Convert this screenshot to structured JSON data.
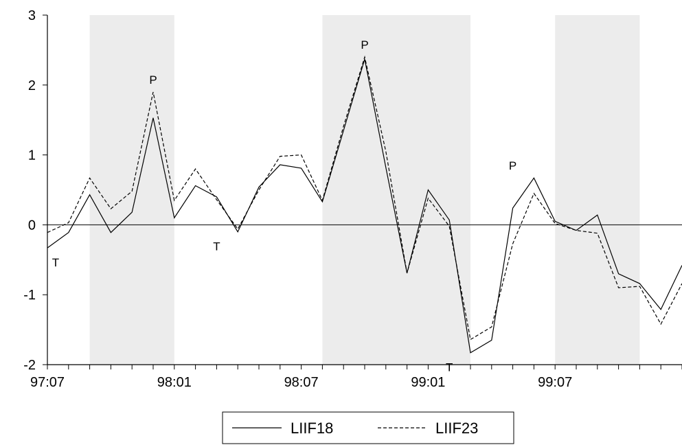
{
  "chart_data": {
    "type": "line",
    "title": "",
    "xlabel": "",
    "ylabel": "",
    "ylim": [
      -2,
      3
    ],
    "y_ticks": [
      3,
      2,
      1,
      0,
      -1,
      -2
    ],
    "y_tick_labels": [
      "3",
      "2",
      "1",
      "0",
      "-1",
      "-2"
    ],
    "x": [
      "97:07",
      "97:08",
      "97:09",
      "97:10",
      "97:11",
      "97:12",
      "98:01",
      "98:02",
      "98:03",
      "98:04",
      "98:05",
      "98:06",
      "98:07",
      "98:08",
      "98:09",
      "98:10",
      "98:11",
      "98:12",
      "99:01",
      "99:02",
      "99:03",
      "99:04",
      "99:05",
      "99:06",
      "99:07",
      "99:08",
      "99:09",
      "99:10",
      "99:11",
      "99:12",
      "00:01"
    ],
    "x_tick_labels": [
      {
        "label": "97:07",
        "month": "97:07"
      },
      {
        "label": "98:01",
        "month": "98:01"
      },
      {
        "label": "98:07",
        "month": "98:07"
      },
      {
        "label": "99:01",
        "month": "99:01"
      },
      {
        "label": "99:07",
        "month": "99:07"
      }
    ],
    "series": [
      {
        "name": "LIIF18",
        "style": "solid",
        "color": "#000000",
        "values": [
          -0.33,
          -0.11,
          0.43,
          -0.11,
          0.18,
          1.53,
          0.1,
          0.56,
          0.4,
          -0.1,
          0.54,
          0.86,
          0.81,
          0.33,
          1.35,
          2.37,
          0.82,
          -0.69,
          0.5,
          0.07,
          -1.83,
          -1.65,
          0.24,
          0.67,
          0.05,
          -0.08,
          0.14,
          -0.7,
          -0.84,
          -1.21,
          -0.58
        ]
      },
      {
        "name": "LIIF23",
        "style": "dashed",
        "color": "#000000",
        "values": [
          -0.11,
          0.03,
          0.67,
          0.23,
          0.48,
          1.9,
          0.35,
          0.8,
          0.36,
          -0.06,
          0.5,
          0.98,
          1.0,
          0.35,
          1.41,
          2.4,
          1.05,
          -0.69,
          0.38,
          -0.02,
          -1.64,
          -1.46,
          -0.27,
          0.45,
          0.02,
          -0.08,
          -0.12,
          -0.9,
          -0.88,
          -1.42,
          -0.84
        ]
      }
    ],
    "shaded_periods": [
      {
        "start": "97:09",
        "end": "98:01"
      },
      {
        "start": "98:08",
        "end": "99:03"
      },
      {
        "start": "99:07",
        "end": "99:11"
      }
    ],
    "annotations": [
      {
        "text": "T",
        "x": "97:07",
        "y": -0.33,
        "position": "below"
      },
      {
        "text": "P",
        "x": "97:12",
        "y": 1.9,
        "position": "above"
      },
      {
        "text": "T",
        "x": "98:03",
        "y": -0.1,
        "position": "below"
      },
      {
        "text": "P",
        "x": "98:10",
        "y": 2.4,
        "position": "above"
      },
      {
        "text": "T",
        "x": "99:02",
        "y": -1.83,
        "position": "below"
      },
      {
        "text": "P",
        "x": "99:05",
        "y": 0.67,
        "position": "above"
      }
    ],
    "zero_line": true,
    "grid": false,
    "legend": {
      "placement": "bottom-center",
      "entries": [
        "LIIF18",
        "LIIF23"
      ]
    },
    "shade_color": "#ececec"
  }
}
